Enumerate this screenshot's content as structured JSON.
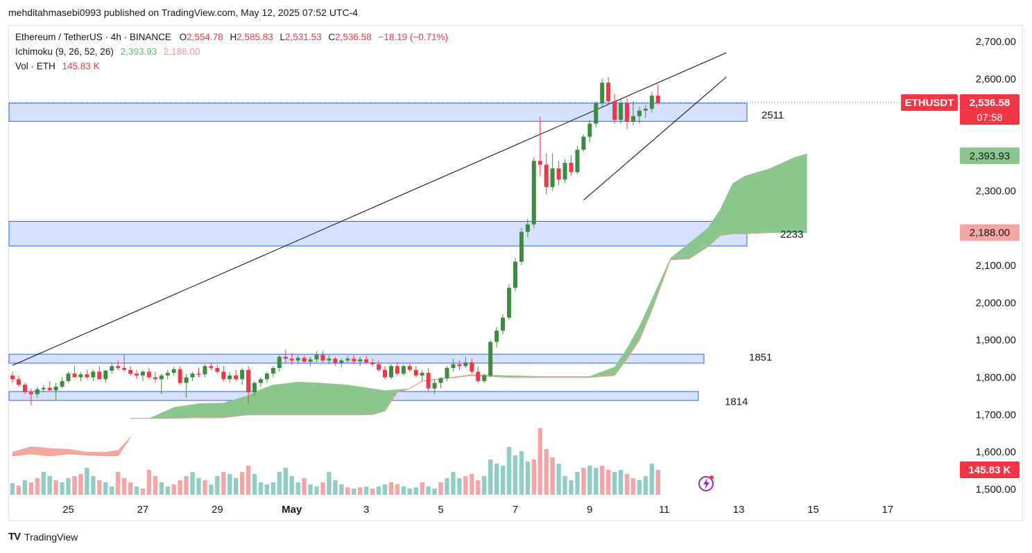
{
  "publisher_line": "mehditahmasebi0993 published on TradingView.com, May 12, 2025 07:52 UTC-4",
  "footer": {
    "logo_mark": "TV",
    "logo_text": "TradingView"
  },
  "legend": {
    "symbol": "Ethereum / TetherUS · 4h · BINANCE",
    "o_label": "O",
    "o": "2,554.78",
    "h_label": "H",
    "h": "2,585.83",
    "l_label": "L",
    "l": "2,531.53",
    "c_label": "C",
    "c": "2,536.58",
    "change": "−18.19 (−0.71%)",
    "ichimoku_label": "Ichimoku (9, 26, 52, 26)",
    "ichimoku_a": "2,393.93",
    "ichimoku_b": "2,188.00",
    "vol_label": "Vol · ETH",
    "vol_value": "145.83 K"
  },
  "colors": {
    "up": "#26a69a",
    "upBody": "#3d8b40",
    "down": "#f23645",
    "cloudGreen": "#8bc68d",
    "cloudRed": "#f4a6a0",
    "zone": "#d0deff",
    "zoneBorder": "#2962ff",
    "volUp": "#8fcdc5",
    "volDown": "#f4a6a6"
  },
  "chart_data": {
    "type": "candlestick",
    "symbol": "ETHUSDT",
    "timeframe": "4h",
    "ylim": [
      1500,
      2700
    ],
    "y_ticks": [
      "2,700.00",
      "2,600.00",
      "2,500.00",
      "2,400.00",
      "2,300.00",
      "2,200.00",
      "2,100.00",
      "2,000.00",
      "1,900.00",
      "1,800.00",
      "1,700.00",
      "1,600.00",
      "1,500.00"
    ],
    "y_tick_values": [
      2700,
      2600,
      2500,
      2400,
      2300,
      2200,
      2100,
      2000,
      1900,
      1800,
      1700,
      1600,
      1500
    ],
    "x_ticks": [
      "25",
      "27",
      "29",
      "May",
      "3",
      "5",
      "7",
      "9",
      "11",
      "13",
      "15",
      "17"
    ],
    "current_price_label": "ETHUSDT",
    "current_price": "2,536.58",
    "countdown": "07:58",
    "ichimoku_a_badge": "2,393.93",
    "ichimoku_b_badge": "2,188.00",
    "volume_badge": "145.83 K",
    "zones": [
      {
        "label": "2511",
        "top": 2535,
        "bottom": 2486
      },
      {
        "label": "2233",
        "top": 2218,
        "bottom": 2152
      },
      {
        "label": "1851",
        "top": 1862,
        "bottom": 1838
      },
      {
        "label": "1814",
        "top": 1762,
        "bottom": 1738
      }
    ],
    "candles": [
      [
        1805,
        1815,
        1785,
        1795
      ],
      [
        1795,
        1805,
        1775,
        1780
      ],
      [
        1780,
        1785,
        1755,
        1760
      ],
      [
        1760,
        1770,
        1725,
        1755
      ],
      [
        1755,
        1775,
        1745,
        1768
      ],
      [
        1768,
        1780,
        1760,
        1772
      ],
      [
        1772,
        1790,
        1765,
        1765
      ],
      [
        1765,
        1785,
        1740,
        1775
      ],
      [
        1775,
        1800,
        1770,
        1790
      ],
      [
        1790,
        1815,
        1785,
        1810
      ],
      [
        1810,
        1830,
        1800,
        1800
      ],
      [
        1800,
        1815,
        1790,
        1808
      ],
      [
        1808,
        1820,
        1795,
        1800
      ],
      [
        1800,
        1820,
        1790,
        1815
      ],
      [
        1815,
        1830,
        1800,
        1795
      ],
      [
        1795,
        1820,
        1785,
        1818
      ],
      [
        1818,
        1840,
        1810,
        1830
      ],
      [
        1830,
        1845,
        1820,
        1825
      ],
      [
        1825,
        1860,
        1815,
        1820
      ],
      [
        1820,
        1830,
        1805,
        1810
      ],
      [
        1810,
        1820,
        1795,
        1805
      ],
      [
        1805,
        1820,
        1790,
        1815
      ],
      [
        1815,
        1825,
        1795,
        1800
      ],
      [
        1800,
        1815,
        1785,
        1795
      ],
      [
        1795,
        1810,
        1755,
        1805
      ],
      [
        1805,
        1820,
        1795,
        1812
      ],
      [
        1812,
        1828,
        1805,
        1822
      ],
      [
        1822,
        1830,
        1780,
        1785
      ],
      [
        1785,
        1810,
        1745,
        1800
      ],
      [
        1800,
        1815,
        1790,
        1810
      ],
      [
        1810,
        1825,
        1800,
        1808
      ],
      [
        1808,
        1835,
        1800,
        1830
      ],
      [
        1830,
        1840,
        1820,
        1825
      ],
      [
        1825,
        1835,
        1810,
        1815
      ],
      [
        1815,
        1830,
        1790,
        1795
      ],
      [
        1795,
        1815,
        1785,
        1805
      ],
      [
        1805,
        1820,
        1790,
        1795
      ],
      [
        1795,
        1825,
        1780,
        1820
      ],
      [
        1820,
        1830,
        1730,
        1760
      ],
      [
        1760,
        1790,
        1750,
        1785
      ],
      [
        1785,
        1800,
        1775,
        1795
      ],
      [
        1795,
        1815,
        1785,
        1810
      ],
      [
        1810,
        1830,
        1800,
        1825
      ],
      [
        1825,
        1860,
        1815,
        1855
      ],
      [
        1855,
        1875,
        1840,
        1850
      ],
      [
        1850,
        1865,
        1835,
        1845
      ],
      [
        1845,
        1860,
        1835,
        1852
      ],
      [
        1852,
        1858,
        1838,
        1842
      ],
      [
        1842,
        1855,
        1830,
        1848
      ],
      [
        1848,
        1870,
        1840,
        1860
      ],
      [
        1860,
        1870,
        1840,
        1845
      ],
      [
        1845,
        1860,
        1835,
        1850
      ],
      [
        1850,
        1855,
        1830,
        1838
      ],
      [
        1838,
        1850,
        1828,
        1845
      ],
      [
        1845,
        1858,
        1838,
        1850
      ],
      [
        1850,
        1860,
        1835,
        1843
      ],
      [
        1843,
        1855,
        1830,
        1848
      ],
      [
        1848,
        1858,
        1835,
        1840
      ],
      [
        1840,
        1850,
        1828,
        1835
      ],
      [
        1835,
        1845,
        1815,
        1820
      ],
      [
        1820,
        1830,
        1795,
        1800
      ],
      [
        1800,
        1835,
        1795,
        1830
      ],
      [
        1830,
        1840,
        1805,
        1810
      ],
      [
        1810,
        1835,
        1805,
        1830
      ],
      [
        1830,
        1838,
        1815,
        1820
      ],
      [
        1820,
        1830,
        1800,
        1805
      ],
      [
        1805,
        1820,
        1790,
        1812
      ],
      [
        1812,
        1825,
        1760,
        1770
      ],
      [
        1770,
        1795,
        1755,
        1785
      ],
      [
        1785,
        1800,
        1770,
        1798
      ],
      [
        1798,
        1830,
        1790,
        1825
      ],
      [
        1825,
        1850,
        1815,
        1835
      ],
      [
        1835,
        1845,
        1820,
        1830
      ],
      [
        1830,
        1855,
        1825,
        1840
      ],
      [
        1840,
        1850,
        1810,
        1815
      ],
      [
        1815,
        1830,
        1785,
        1790
      ],
      [
        1790,
        1810,
        1785,
        1805
      ],
      [
        1805,
        1900,
        1800,
        1895
      ],
      [
        1895,
        1935,
        1880,
        1925
      ],
      [
        1925,
        1970,
        1915,
        1960
      ],
      [
        1960,
        2050,
        1955,
        2040
      ],
      [
        2040,
        2120,
        2030,
        2110
      ],
      [
        2110,
        2200,
        2100,
        2190
      ],
      [
        2190,
        2225,
        2175,
        2210
      ],
      [
        2210,
        2390,
        2200,
        2380
      ],
      [
        2380,
        2500,
        2340,
        2370
      ],
      [
        2370,
        2400,
        2290,
        2310
      ],
      [
        2310,
        2400,
        2300,
        2360
      ],
      [
        2360,
        2380,
        2315,
        2330
      ],
      [
        2330,
        2385,
        2320,
        2375
      ],
      [
        2375,
        2395,
        2340,
        2350
      ],
      [
        2350,
        2420,
        2345,
        2410
      ],
      [
        2410,
        2450,
        2405,
        2445
      ],
      [
        2445,
        2490,
        2430,
        2480
      ],
      [
        2480,
        2540,
        2470,
        2535
      ],
      [
        2535,
        2600,
        2525,
        2590
      ],
      [
        2590,
        2605,
        2530,
        2540
      ],
      [
        2540,
        2560,
        2480,
        2490
      ],
      [
        2490,
        2545,
        2480,
        2535
      ],
      [
        2535,
        2550,
        2465,
        2485
      ],
      [
        2485,
        2540,
        2475,
        2500
      ],
      [
        2500,
        2525,
        2480,
        2515
      ],
      [
        2515,
        2530,
        2495,
        2520
      ],
      [
        2520,
        2565,
        2510,
        2555
      ],
      [
        2555,
        2585,
        2531,
        2536
      ]
    ],
    "volume": [
      [
        0.28,
        1
      ],
      [
        0.22,
        0
      ],
      [
        0.35,
        1
      ],
      [
        0.3,
        0
      ],
      [
        0.4,
        0
      ],
      [
        0.55,
        1
      ],
      [
        0.45,
        1
      ],
      [
        0.35,
        0
      ],
      [
        0.3,
        1
      ],
      [
        0.4,
        1
      ],
      [
        0.45,
        0
      ],
      [
        0.5,
        0
      ],
      [
        0.65,
        1
      ],
      [
        0.45,
        1
      ],
      [
        0.35,
        0
      ],
      [
        0.3,
        1
      ],
      [
        0.2,
        1
      ],
      [
        0.55,
        0
      ],
      [
        0.4,
        0
      ],
      [
        0.3,
        0
      ],
      [
        0.2,
        1
      ],
      [
        0.15,
        0
      ],
      [
        0.6,
        0
      ],
      [
        0.45,
        0
      ],
      [
        0.3,
        1
      ],
      [
        0.2,
        1
      ],
      [
        0.25,
        0
      ],
      [
        0.35,
        0
      ],
      [
        0.45,
        0
      ],
      [
        0.55,
        1
      ],
      [
        0.4,
        1
      ],
      [
        0.35,
        0
      ],
      [
        0.25,
        1
      ],
      [
        0.45,
        1
      ],
      [
        0.55,
        0
      ],
      [
        0.5,
        1
      ],
      [
        0.4,
        1
      ],
      [
        0.55,
        0
      ],
      [
        0.7,
        0
      ],
      [
        0.5,
        1
      ],
      [
        0.3,
        1
      ],
      [
        0.25,
        1
      ],
      [
        0.3,
        1
      ],
      [
        0.55,
        1
      ],
      [
        0.65,
        1
      ],
      [
        0.45,
        1
      ],
      [
        0.3,
        1
      ],
      [
        0.4,
        0
      ],
      [
        0.25,
        1
      ],
      [
        0.2,
        1
      ],
      [
        0.3,
        0
      ],
      [
        0.55,
        1
      ],
      [
        0.35,
        1
      ],
      [
        0.25,
        1
      ],
      [
        0.18,
        0
      ],
      [
        0.15,
        1
      ],
      [
        0.18,
        0
      ],
      [
        0.2,
        1
      ],
      [
        0.15,
        0
      ],
      [
        0.2,
        1
      ],
      [
        0.25,
        1
      ],
      [
        0.3,
        0
      ],
      [
        0.25,
        0
      ],
      [
        0.2,
        1
      ],
      [
        0.15,
        1
      ],
      [
        0.18,
        1
      ],
      [
        0.3,
        0
      ],
      [
        0.2,
        1
      ],
      [
        0.15,
        1
      ],
      [
        0.3,
        0
      ],
      [
        0.4,
        1
      ],
      [
        0.55,
        1
      ],
      [
        0.4,
        1
      ],
      [
        0.45,
        0
      ],
      [
        0.5,
        0
      ],
      [
        0.35,
        0
      ],
      [
        0.45,
        1
      ],
      [
        0.85,
        1
      ],
      [
        0.75,
        1
      ],
      [
        0.7,
        1
      ],
      [
        1.15,
        1
      ],
      [
        0.95,
        1
      ],
      [
        1.05,
        1
      ],
      [
        0.8,
        1
      ],
      [
        0.85,
        0
      ],
      [
        1.6,
        0
      ],
      [
        1.1,
        0
      ],
      [
        0.9,
        0
      ],
      [
        0.75,
        1
      ],
      [
        0.45,
        1
      ],
      [
        0.35,
        1
      ],
      [
        0.55,
        1
      ],
      [
        0.65,
        0
      ],
      [
        0.7,
        1
      ],
      [
        0.65,
        1
      ],
      [
        0.7,
        0
      ],
      [
        0.6,
        0
      ],
      [
        0.55,
        1
      ],
      [
        0.6,
        1
      ],
      [
        0.5,
        0
      ],
      [
        0.4,
        0
      ],
      [
        0.35,
        1
      ],
      [
        0.45,
        1
      ],
      [
        0.75,
        1
      ],
      [
        0.6,
        0
      ]
    ],
    "cloud_green": {
      "top": [
        [
          19,
          1690
        ],
        [
          22,
          1690
        ],
        [
          26,
          1720
        ],
        [
          30,
          1730
        ],
        [
          34,
          1732
        ],
        [
          38,
          1752
        ],
        [
          40,
          1768
        ],
        [
          42,
          1780
        ],
        [
          46,
          1788
        ],
        [
          50,
          1785
        ],
        [
          54,
          1780
        ],
        [
          60,
          1765
        ],
        [
          64,
          1770
        ],
        [
          66,
          1790
        ],
        [
          74,
          1808
        ],
        [
          80,
          1805
        ],
        [
          85,
          1803
        ],
        [
          93,
          1803
        ],
        [
          97,
          1828
        ],
        [
          99,
          1878
        ],
        [
          101,
          1938
        ],
        [
          103,
          2010
        ],
        [
          106,
          2120
        ],
        [
          109,
          2160
        ],
        [
          112,
          2200
        ],
        [
          114,
          2250
        ],
        [
          116,
          2320
        ],
        [
          118,
          2340
        ],
        [
          122,
          2360
        ],
        [
          126,
          2390
        ],
        [
          128,
          2400
        ]
      ],
      "bottom": [
        [
          19,
          1690
        ],
        [
          22,
          1690
        ],
        [
          26,
          1690
        ],
        [
          30,
          1692
        ],
        [
          34,
          1692
        ],
        [
          38,
          1700
        ],
        [
          40,
          1700
        ],
        [
          46,
          1700
        ],
        [
          50,
          1700
        ],
        [
          54,
          1700
        ],
        [
          58,
          1700
        ],
        [
          60,
          1710
        ],
        [
          62,
          1760
        ],
        [
          64,
          1770
        ],
        [
          66,
          1790
        ],
        [
          74,
          1805
        ],
        [
          80,
          1800
        ],
        [
          85,
          1800
        ],
        [
          93,
          1800
        ],
        [
          97,
          1805
        ],
        [
          99,
          1850
        ],
        [
          101,
          1900
        ],
        [
          103,
          1980
        ],
        [
          106,
          2115
        ],
        [
          109,
          2118
        ],
        [
          112,
          2150
        ],
        [
          114,
          2180
        ],
        [
          116,
          2185
        ],
        [
          118,
          2185
        ],
        [
          122,
          2188
        ],
        [
          126,
          2188
        ],
        [
          128,
          2188
        ]
      ]
    },
    "cloud_red": {
      "top": [
        [
          0,
          1600
        ],
        [
          3,
          1615
        ],
        [
          6,
          1610
        ],
        [
          9,
          1608
        ],
        [
          12,
          1600
        ],
        [
          15,
          1600
        ],
        [
          17,
          1605
        ],
        [
          19,
          1640
        ]
      ],
      "bottom": [
        [
          0,
          1590
        ],
        [
          3,
          1595
        ],
        [
          6,
          1590
        ],
        [
          9,
          1595
        ],
        [
          12,
          1592
        ],
        [
          15,
          1590
        ],
        [
          17,
          1590
        ],
        [
          19,
          1640
        ]
      ]
    },
    "trendlines": [
      {
        "from": [
          0,
          1832
        ],
        "to": [
          115,
          2670
        ]
      },
      {
        "from": [
          92,
          2275
        ],
        "to": [
          115,
          2605
        ]
      }
    ]
  }
}
